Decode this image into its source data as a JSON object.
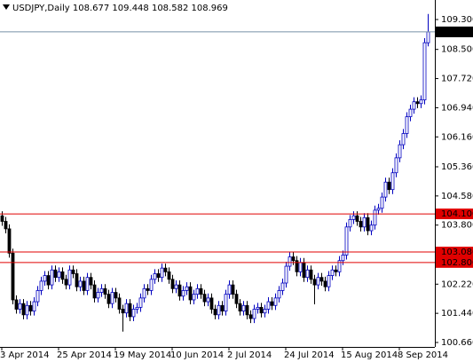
{
  "chart_data": {
    "type": "candlestick",
    "title": "USDJPY,Daily 108.677 109.448 108.582 108.969",
    "up_color": "#0000c0",
    "down_color": "#000000",
    "ylim": [
      100.565,
      109.822
    ],
    "yticks": [
      {
        "value": 109.3,
        "label": "109.300"
      },
      {
        "value": 108.5,
        "label": "108.500"
      },
      {
        "value": 107.72,
        "label": "107.720"
      },
      {
        "value": 106.94,
        "label": "106.940"
      },
      {
        "value": 106.16,
        "label": "106.160"
      },
      {
        "value": 105.36,
        "label": "105.360"
      },
      {
        "value": 104.58,
        "label": "104.580"
      },
      {
        "value": 103.8,
        "label": "103.800"
      },
      {
        "value": 102.22,
        "label": "102.220"
      },
      {
        "value": 101.44,
        "label": "101.440"
      },
      {
        "value": 100.66,
        "label": "100.660"
      }
    ],
    "levels": [
      {
        "value": 104.1,
        "label": "104.100",
        "color": "#e00000"
      },
      {
        "value": 103.08,
        "label": "103.080",
        "color": "#e00000"
      },
      {
        "value": 102.8,
        "label": "102.800",
        "color": "#e00000"
      }
    ],
    "last_price": {
      "value": 108.969,
      "label": "108.969",
      "color": "#7890a8"
    },
    "categories": [
      "3 Apr 2014",
      null,
      null,
      null,
      null,
      null,
      null,
      null,
      null,
      null,
      null,
      null,
      null,
      null,
      null,
      null,
      "25 Apr 2014",
      null,
      null,
      null,
      null,
      null,
      null,
      null,
      null,
      null,
      null,
      null,
      null,
      null,
      null,
      null,
      "19 May 2014",
      null,
      null,
      null,
      null,
      null,
      null,
      null,
      null,
      null,
      null,
      null,
      null,
      null,
      null,
      null,
      "10 Jun 2014",
      null,
      null,
      null,
      null,
      null,
      null,
      null,
      null,
      null,
      null,
      null,
      null,
      null,
      null,
      null,
      "2 Jul 2014",
      null,
      null,
      null,
      null,
      null,
      null,
      null,
      null,
      null,
      null,
      null,
      null,
      null,
      null,
      null,
      "24 Jul 2014",
      null,
      null,
      null,
      null,
      null,
      null,
      null,
      null,
      null,
      null,
      null,
      null,
      null,
      null,
      null,
      "15 Aug 2014",
      null,
      null,
      null,
      null,
      null,
      null,
      null,
      null,
      null,
      null,
      null,
      null,
      null,
      null,
      null,
      "8 Sep 2014",
      null,
      null,
      null,
      null,
      null,
      null,
      null,
      null
    ],
    "candles": [
      [
        104.05,
        104.17,
        103.78,
        103.9
      ],
      [
        103.9,
        104.02,
        103.58,
        103.7
      ],
      [
        103.7,
        103.82,
        102.93,
        103.05
      ],
      [
        103.05,
        103.17,
        101.68,
        101.8
      ],
      [
        101.8,
        101.92,
        101.43,
        101.55
      ],
      [
        101.55,
        101.82,
        101.43,
        101.7
      ],
      [
        101.7,
        101.82,
        101.28,
        101.4
      ],
      [
        101.4,
        101.77,
        101.28,
        101.65
      ],
      [
        101.65,
        101.77,
        101.38,
        101.5
      ],
      [
        101.5,
        101.87,
        101.38,
        101.75
      ],
      [
        101.75,
        102.17,
        101.63,
        102.05
      ],
      [
        102.05,
        102.42,
        101.93,
        102.3
      ],
      [
        102.3,
        102.57,
        102.18,
        102.45
      ],
      [
        102.45,
        102.57,
        102.08,
        102.2
      ],
      [
        102.2,
        102.72,
        102.08,
        102.6
      ],
      [
        102.6,
        102.72,
        102.28,
        102.4
      ],
      [
        102.4,
        102.67,
        102.28,
        102.55
      ],
      [
        102.55,
        102.67,
        102.23,
        102.35
      ],
      [
        102.35,
        102.47,
        102.08,
        102.2
      ],
      [
        102.2,
        102.72,
        102.08,
        102.6
      ],
      [
        102.6,
        102.72,
        102.38,
        102.5
      ],
      [
        102.5,
        102.62,
        102.03,
        102.15
      ],
      [
        102.15,
        102.42,
        102.03,
        102.3
      ],
      [
        102.3,
        102.42,
        101.93,
        102.05
      ],
      [
        102.05,
        102.52,
        101.93,
        102.4
      ],
      [
        102.4,
        102.52,
        102.08,
        102.2
      ],
      [
        102.2,
        102.32,
        101.73,
        101.85
      ],
      [
        101.85,
        102.12,
        101.73,
        102.0
      ],
      [
        102.0,
        102.22,
        101.88,
        102.1
      ],
      [
        102.1,
        102.22,
        101.83,
        101.95
      ],
      [
        101.95,
        102.07,
        101.58,
        101.7
      ],
      [
        101.7,
        102.12,
        101.58,
        102.0
      ],
      [
        102.0,
        102.12,
        101.73,
        101.85
      ],
      [
        101.85,
        101.97,
        101.43,
        101.55
      ],
      [
        101.55,
        101.67,
        100.95,
        101.45
      ],
      [
        101.45,
        101.82,
        101.33,
        101.7
      ],
      [
        101.7,
        101.82,
        101.23,
        101.35
      ],
      [
        101.35,
        101.67,
        101.23,
        101.55
      ],
      [
        101.55,
        101.72,
        101.43,
        101.6
      ],
      [
        101.6,
        101.97,
        101.48,
        101.85
      ],
      [
        101.85,
        102.22,
        101.73,
        102.1
      ],
      [
        102.1,
        102.22,
        101.93,
        102.05
      ],
      [
        102.05,
        102.47,
        101.93,
        102.35
      ],
      [
        102.35,
        102.62,
        102.23,
        102.5
      ],
      [
        102.5,
        102.62,
        102.28,
        102.4
      ],
      [
        102.4,
        102.77,
        102.28,
        102.65
      ],
      [
        102.65,
        102.77,
        102.43,
        102.55
      ],
      [
        102.55,
        102.67,
        102.23,
        102.35
      ],
      [
        102.35,
        102.47,
        101.98,
        102.1
      ],
      [
        102.1,
        102.32,
        101.98,
        102.2
      ],
      [
        102.2,
        102.32,
        101.78,
        101.9
      ],
      [
        101.9,
        102.17,
        101.78,
        102.05
      ],
      [
        102.05,
        102.27,
        101.93,
        102.15
      ],
      [
        102.15,
        102.27,
        101.68,
        101.8
      ],
      [
        101.8,
        102.07,
        101.68,
        101.95
      ],
      [
        101.95,
        102.22,
        101.83,
        102.1
      ],
      [
        102.1,
        102.22,
        101.83,
        101.95
      ],
      [
        101.95,
        102.07,
        101.63,
        101.75
      ],
      [
        101.75,
        101.97,
        101.63,
        101.85
      ],
      [
        101.85,
        101.97,
        101.43,
        101.55
      ],
      [
        101.55,
        101.67,
        101.28,
        101.4
      ],
      [
        101.4,
        101.77,
        101.28,
        101.65
      ],
      [
        101.65,
        101.77,
        101.38,
        101.5
      ],
      [
        101.5,
        102.07,
        101.38,
        101.95
      ],
      [
        101.95,
        102.32,
        101.83,
        102.2
      ],
      [
        102.2,
        102.32,
        101.83,
        101.95
      ],
      [
        101.95,
        102.07,
        101.58,
        101.7
      ],
      [
        101.7,
        101.82,
        101.38,
        101.5
      ],
      [
        101.5,
        101.77,
        101.38,
        101.65
      ],
      [
        101.65,
        101.77,
        101.28,
        101.4
      ],
      [
        101.4,
        101.52,
        101.18,
        101.3
      ],
      [
        101.3,
        101.67,
        101.18,
        101.55
      ],
      [
        101.55,
        101.72,
        101.43,
        101.6
      ],
      [
        101.6,
        101.72,
        101.33,
        101.45
      ],
      [
        101.45,
        101.67,
        101.33,
        101.55
      ],
      [
        101.55,
        101.87,
        101.43,
        101.75
      ],
      [
        101.75,
        101.87,
        101.53,
        101.65
      ],
      [
        101.65,
        101.97,
        101.53,
        101.85
      ],
      [
        101.85,
        102.17,
        101.73,
        102.05
      ],
      [
        102.05,
        102.37,
        101.93,
        102.25
      ],
      [
        102.25,
        102.82,
        102.13,
        102.7
      ],
      [
        102.7,
        103.07,
        102.58,
        102.95
      ],
      [
        102.95,
        103.07,
        102.73,
        102.85
      ],
      [
        102.85,
        102.97,
        102.43,
        102.55
      ],
      [
        102.55,
        102.92,
        102.43,
        102.8
      ],
      [
        102.8,
        102.92,
        102.28,
        102.4
      ],
      [
        102.4,
        102.72,
        102.28,
        102.6
      ],
      [
        102.6,
        102.72,
        102.23,
        102.35
      ],
      [
        102.35,
        102.47,
        101.68,
        102.2
      ],
      [
        102.2,
        102.52,
        102.08,
        102.4
      ],
      [
        102.4,
        102.52,
        102.18,
        102.3
      ],
      [
        102.3,
        102.42,
        102.03,
        102.15
      ],
      [
        102.15,
        102.57,
        102.03,
        102.45
      ],
      [
        102.45,
        102.72,
        102.33,
        102.6
      ],
      [
        102.6,
        102.72,
        102.43,
        102.55
      ],
      [
        102.55,
        102.97,
        102.43,
        102.85
      ],
      [
        102.85,
        103.12,
        102.73,
        103.0
      ],
      [
        103.0,
        103.87,
        102.88,
        103.75
      ],
      [
        103.75,
        104.07,
        103.63,
        103.95
      ],
      [
        103.95,
        104.17,
        103.83,
        104.05
      ],
      [
        104.05,
        104.17,
        103.78,
        103.9
      ],
      [
        103.9,
        104.02,
        103.63,
        103.75
      ],
      [
        103.75,
        104.12,
        103.63,
        104.0
      ],
      [
        104.0,
        104.12,
        103.53,
        103.65
      ],
      [
        103.65,
        103.92,
        103.53,
        103.8
      ],
      [
        103.8,
        104.32,
        103.68,
        104.2
      ],
      [
        104.2,
        104.37,
        104.08,
        104.25
      ],
      [
        104.25,
        104.67,
        104.13,
        104.55
      ],
      [
        104.55,
        105.07,
        104.43,
        104.95
      ],
      [
        104.95,
        105.07,
        104.63,
        104.75
      ],
      [
        104.75,
        105.32,
        104.63,
        105.2
      ],
      [
        105.2,
        105.72,
        105.08,
        105.6
      ],
      [
        105.6,
        106.07,
        105.48,
        105.95
      ],
      [
        105.95,
        106.37,
        105.83,
        106.25
      ],
      [
        106.25,
        106.82,
        106.13,
        106.7
      ],
      [
        106.7,
        107.02,
        106.58,
        106.9
      ],
      [
        106.9,
        107.22,
        106.78,
        107.1
      ],
      [
        107.1,
        107.22,
        106.93,
        107.05
      ],
      [
        107.05,
        107.27,
        106.93,
        107.15
      ],
      [
        107.15,
        108.8,
        107.03,
        108.68
      ],
      [
        108.677,
        109.448,
        108.582,
        108.969
      ]
    ]
  }
}
